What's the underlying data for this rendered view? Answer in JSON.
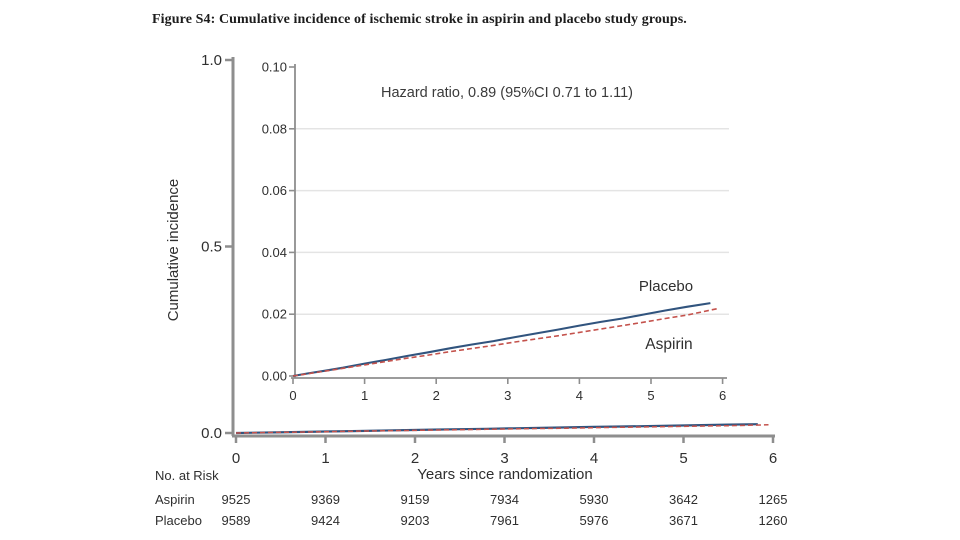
{
  "figure_title": "Figure S4: Cumulative incidence of ischemic stroke in aspirin and placebo study groups.",
  "colors": {
    "placebo": "#31547e",
    "aspirin": "#c4524c",
    "axis": "#8e8e8e",
    "grid": "#e4e4e4",
    "text": "#2f2f2f"
  },
  "chart_data": {
    "type": "line",
    "title": "Cumulative incidence of ischemic stroke in aspirin and placebo study groups",
    "annotation": "Hazard ratio, 0.89 (95%CI 0.71 to 1.11)",
    "xlabel": "Years since randomization",
    "ylabel": "Cumulative incidence",
    "outer_axis": {
      "ylim": [
        0.0,
        1.0
      ],
      "yticks": [
        "1.0",
        "0.5",
        "0.0"
      ],
      "ytick_values": [
        1.0,
        0.5,
        0.0
      ],
      "xlim": [
        0,
        6
      ],
      "xticks": [
        "0",
        "1",
        "2",
        "3",
        "4",
        "5",
        "6"
      ],
      "xtick_values": [
        0,
        1,
        2,
        3,
        4,
        5,
        6
      ],
      "grid": false
    },
    "inset_axis": {
      "ylim": [
        0.0,
        0.1
      ],
      "yticks": [
        "0.10",
        "0.08",
        "0.06",
        "0.04",
        "0.02",
        "0.00"
      ],
      "ytick_values": [
        0.1,
        0.08,
        0.06,
        0.04,
        0.02,
        0.0
      ],
      "gridline_values": [
        0.08,
        0.06,
        0.04,
        0.02
      ],
      "xlim": [
        0,
        6
      ],
      "xticks": [
        "0",
        "1",
        "2",
        "3",
        "4",
        "5",
        "6"
      ],
      "xtick_values": [
        0,
        1,
        2,
        3,
        4,
        5,
        6
      ],
      "grid": true
    },
    "legend_position": "inline-labels",
    "series": [
      {
        "name": "Placebo",
        "color": "#31547e",
        "line_style": "solid",
        "points": [
          [
            0,
            0
          ],
          [
            0.2,
            0.0008
          ],
          [
            0.45,
            0.0017
          ],
          [
            0.7,
            0.0027
          ],
          [
            1,
            0.004
          ],
          [
            1.3,
            0.0052
          ],
          [
            1.6,
            0.0065
          ],
          [
            1.9,
            0.0077
          ],
          [
            2.2,
            0.009
          ],
          [
            2.5,
            0.0102
          ],
          [
            2.8,
            0.0113
          ],
          [
            3.1,
            0.0126
          ],
          [
            3.4,
            0.0138
          ],
          [
            3.7,
            0.015
          ],
          [
            4,
            0.0163
          ],
          [
            4.3,
            0.0175
          ],
          [
            4.6,
            0.0186
          ],
          [
            4.9,
            0.0199
          ],
          [
            5.2,
            0.0212
          ],
          [
            5.5,
            0.0224
          ],
          [
            5.83,
            0.0236
          ]
        ]
      },
      {
        "name": "Aspirin",
        "color": "#c4524c",
        "line_style": "dashed",
        "points": [
          [
            0,
            0
          ],
          [
            0.2,
            0.0007
          ],
          [
            0.45,
            0.0016
          ],
          [
            0.7,
            0.0025
          ],
          [
            1,
            0.0036
          ],
          [
            1.3,
            0.0047
          ],
          [
            1.6,
            0.0058
          ],
          [
            1.9,
            0.0068
          ],
          [
            2.2,
            0.0079
          ],
          [
            2.5,
            0.0089
          ],
          [
            2.8,
            0.0099
          ],
          [
            3.1,
            0.011
          ],
          [
            3.4,
            0.012
          ],
          [
            3.7,
            0.013
          ],
          [
            4,
            0.0141
          ],
          [
            4.3,
            0.0152
          ],
          [
            4.6,
            0.0163
          ],
          [
            4.9,
            0.0174
          ],
          [
            5.2,
            0.0186
          ],
          [
            5.5,
            0.0197
          ],
          [
            5.95,
            0.0219
          ]
        ]
      }
    ],
    "risk_table": {
      "heading": "No. at Risk",
      "time_points": [
        0,
        1,
        2,
        3,
        4,
        5,
        6
      ],
      "rows": [
        {
          "name": "Aspirin",
          "values": [
            "9525",
            "9369",
            "9159",
            "7934",
            "5930",
            "3642",
            "1265"
          ]
        },
        {
          "name": "Placebo",
          "values": [
            "9589",
            "9424",
            "9203",
            "7961",
            "5976",
            "3671",
            "1260"
          ]
        }
      ]
    }
  }
}
